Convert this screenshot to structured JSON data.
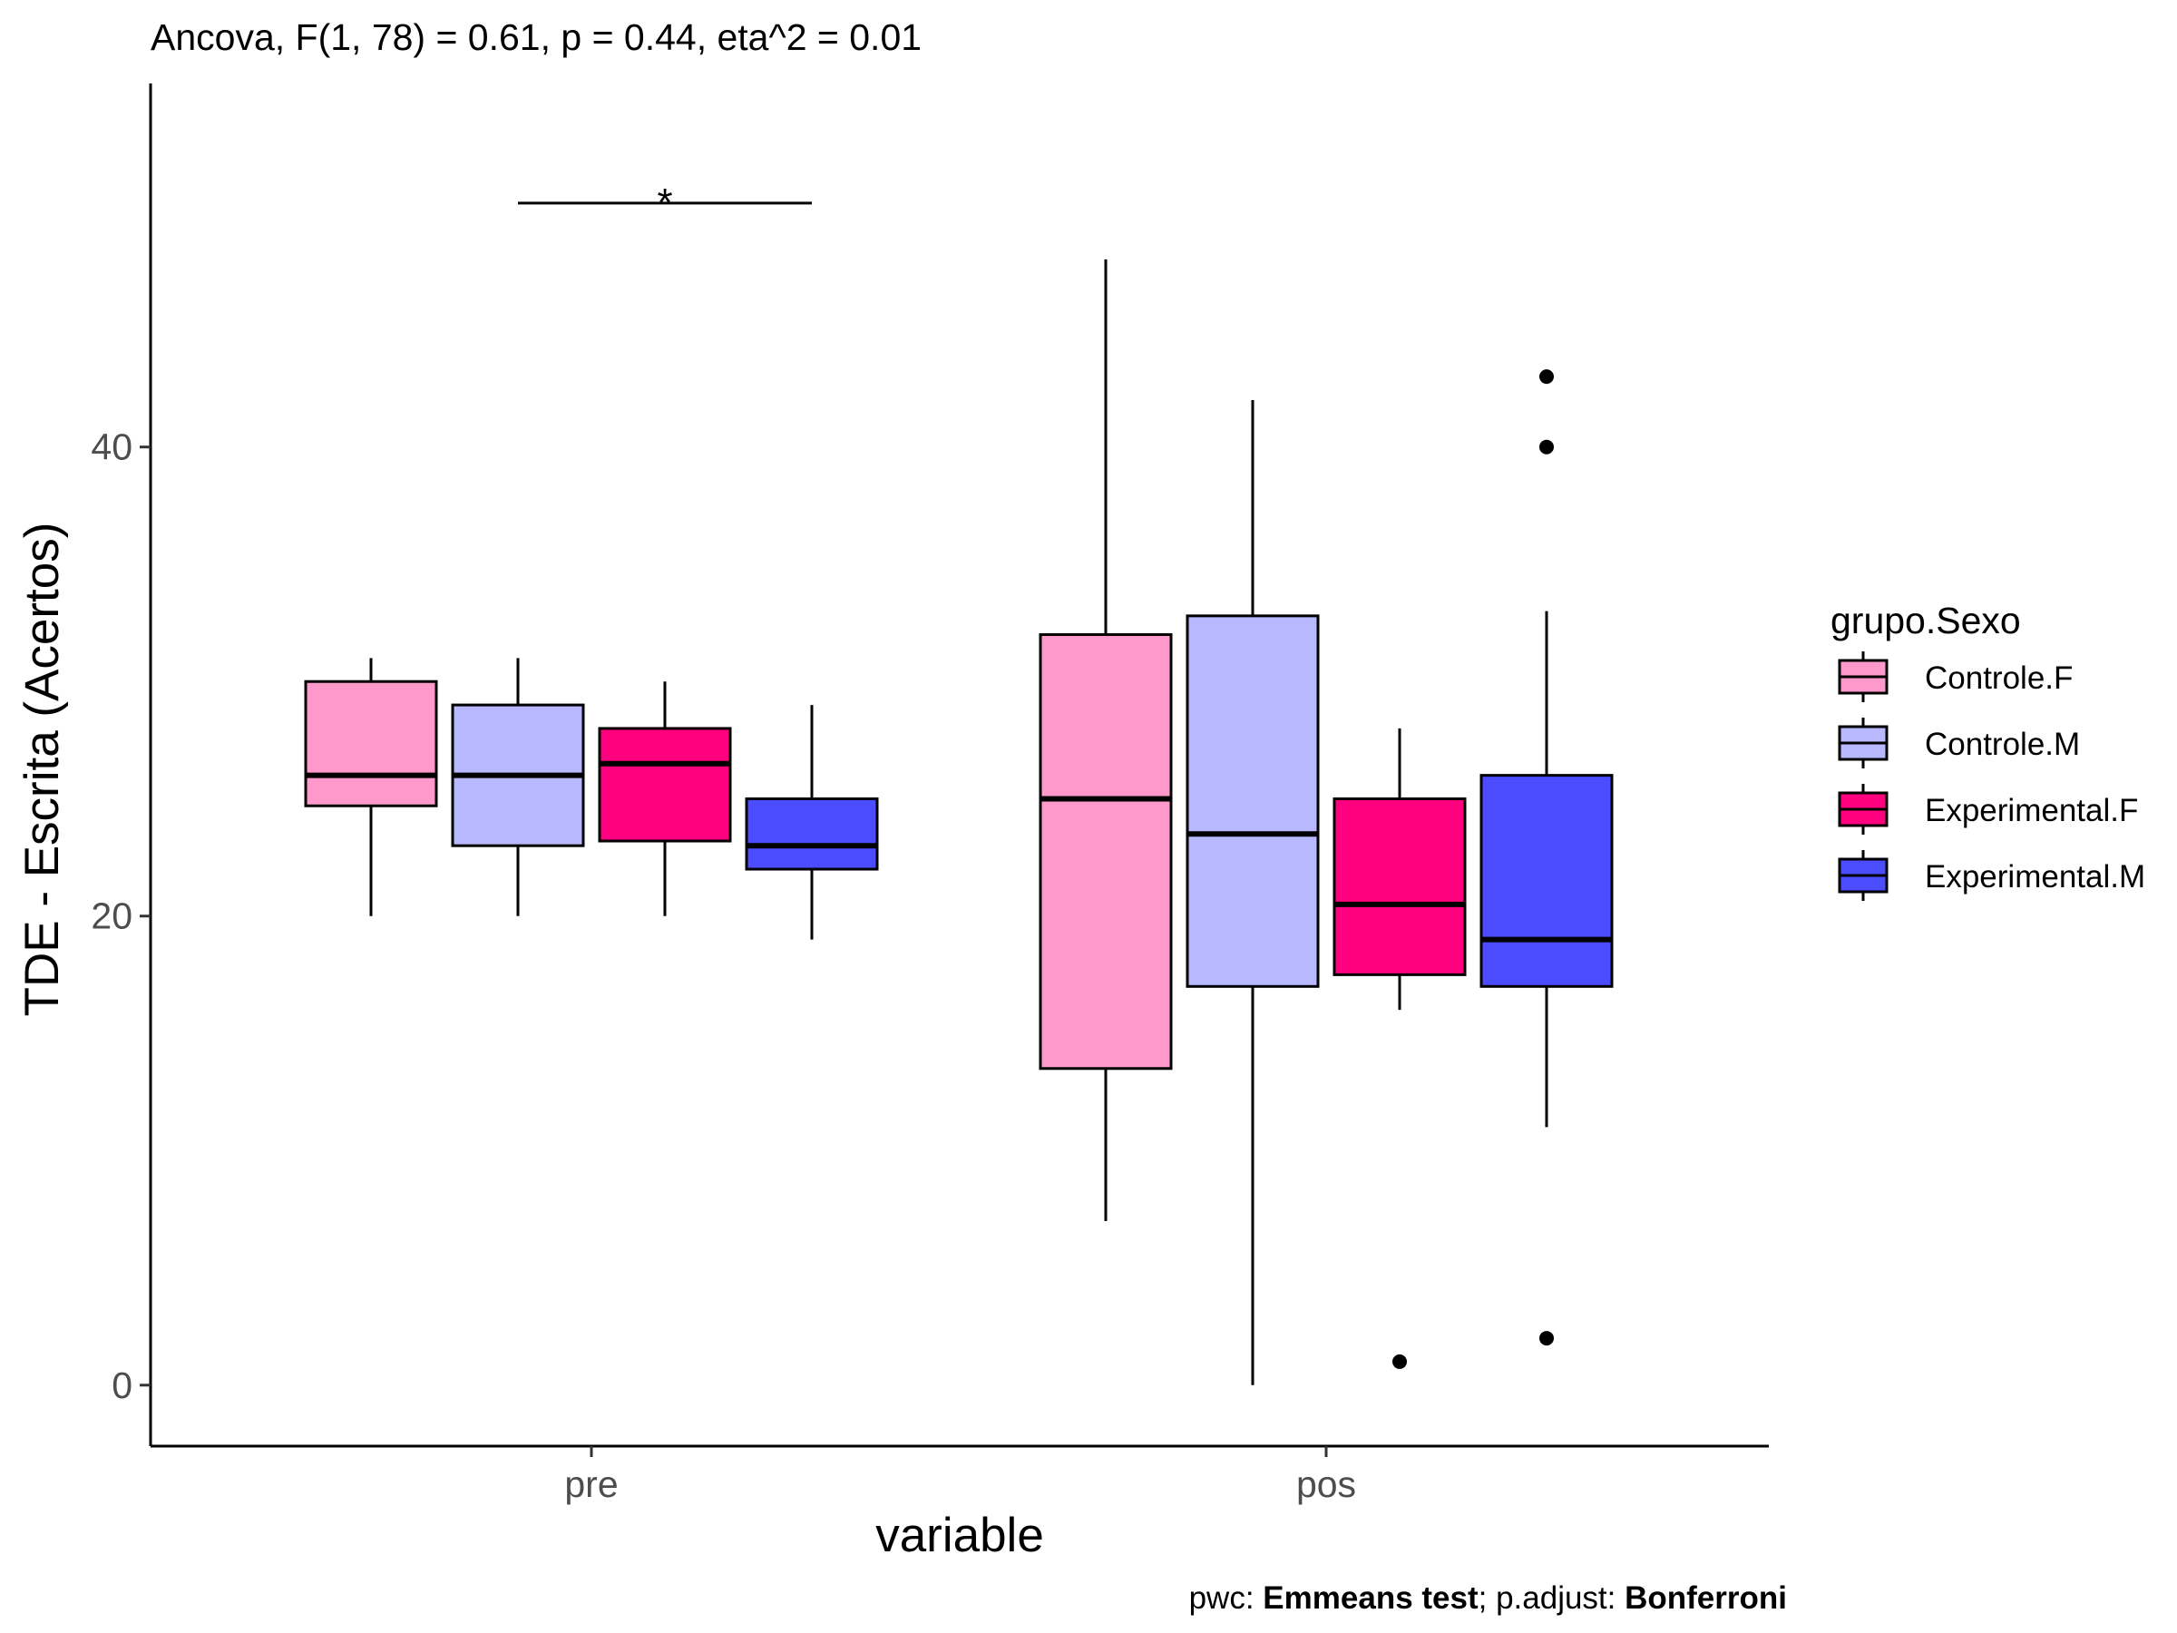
{
  "chart_data": {
    "type": "boxplot",
    "title": "Ancova, F(1, 78) = 0.61, p = 0.44, eta^2 = 0.01",
    "xlabel": "variable",
    "ylabel": "TDE - Escrita (Acertos)",
    "categories": [
      "pre",
      "pos"
    ],
    "ylim": [
      -2.6,
      55.5
    ],
    "yticks": [
      0,
      20,
      40
    ],
    "grid": false,
    "legend": {
      "title": "grupo.Sexo",
      "position": "right",
      "entries": [
        "Controle.F",
        "Controle.M",
        "Experimental.F",
        "Experimental.M"
      ]
    },
    "series": [
      {
        "name": "Controle.F",
        "color": "#FF99CC",
        "boxes": [
          {
            "category": "pre",
            "lower_whisker": 20,
            "q1": 24.7,
            "median": 26,
            "q3": 30,
            "upper_whisker": 31,
            "outliers": []
          },
          {
            "category": "pos",
            "lower_whisker": 7,
            "q1": 13.5,
            "median": 25,
            "q3": 32,
            "upper_whisker": 48,
            "outliers": []
          }
        ]
      },
      {
        "name": "Controle.M",
        "color": "#B8B8FF",
        "boxes": [
          {
            "category": "pre",
            "lower_whisker": 20,
            "q1": 23,
            "median": 26,
            "q3": 29,
            "upper_whisker": 31,
            "outliers": []
          },
          {
            "category": "pos",
            "lower_whisker": 0,
            "q1": 17,
            "median": 23.5,
            "q3": 32.8,
            "upper_whisker": 42,
            "outliers": []
          }
        ]
      },
      {
        "name": "Experimental.F",
        "color": "#FF007F",
        "boxes": [
          {
            "category": "pre",
            "lower_whisker": 20,
            "q1": 23.2,
            "median": 26.5,
            "q3": 28,
            "upper_whisker": 30,
            "outliers": []
          },
          {
            "category": "pos",
            "lower_whisker": 16,
            "q1": 17.5,
            "median": 20.5,
            "q3": 25,
            "upper_whisker": 28,
            "outliers": [
              1
            ]
          }
        ]
      },
      {
        "name": "Experimental.M",
        "color": "#4C4CFF",
        "boxes": [
          {
            "category": "pre",
            "lower_whisker": 19,
            "q1": 22,
            "median": 23,
            "q3": 25,
            "upper_whisker": 29,
            "outliers": []
          },
          {
            "category": "pos",
            "lower_whisker": 11,
            "q1": 17,
            "median": 19,
            "q3": 26,
            "upper_whisker": 33,
            "outliers": [
              2,
              40,
              43
            ]
          }
        ]
      }
    ],
    "annotations": [
      {
        "type": "significance",
        "label": "*",
        "category": "pre",
        "from_series": "Controle.M",
        "to_series": "Experimental.M",
        "y": 50.4
      }
    ],
    "caption": {
      "prefix": "pwc: ",
      "method": "Emmeans test",
      "middle": "; p.adjust: ",
      "adjust": "Bonferroni"
    }
  }
}
